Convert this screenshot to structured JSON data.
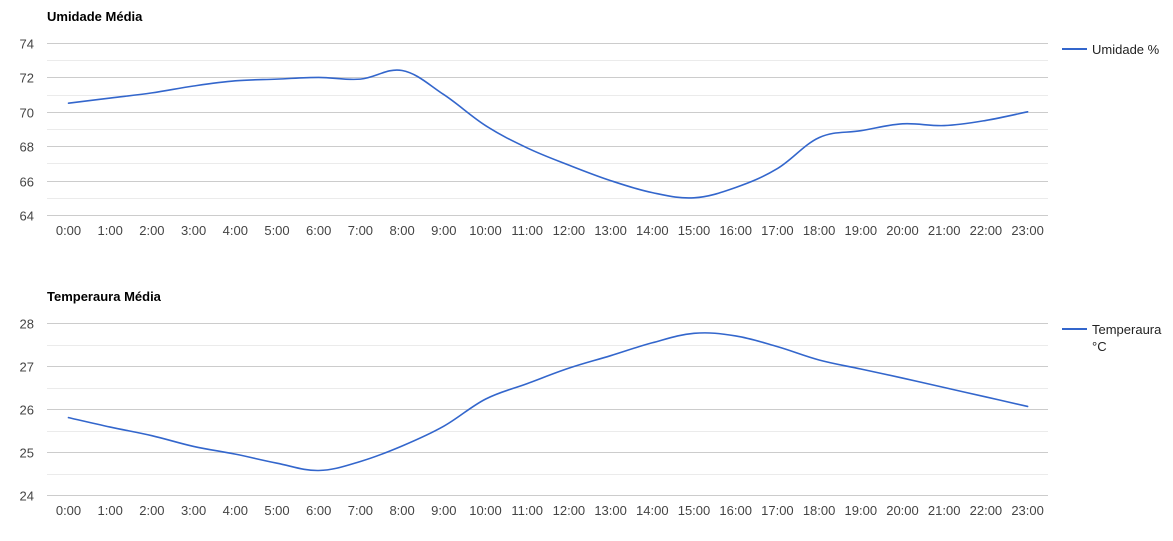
{
  "chart_data": [
    {
      "type": "line",
      "title": "Umidade Média",
      "xlabel": "",
      "ylabel": "",
      "categories": [
        "0:00",
        "1:00",
        "2:00",
        "3:00",
        "4:00",
        "5:00",
        "6:00",
        "7:00",
        "8:00",
        "9:00",
        "10:00",
        "11:00",
        "12:00",
        "13:00",
        "14:00",
        "15:00",
        "16:00",
        "17:00",
        "18:00",
        "19:00",
        "20:00",
        "21:00",
        "22:00",
        "23:00"
      ],
      "series": [
        {
          "name": "Umidade %",
          "color": "#3366cc",
          "values": [
            70.5,
            70.8,
            71.1,
            71.5,
            71.8,
            71.9,
            72.0,
            71.9,
            72.4,
            71.0,
            69.2,
            67.9,
            66.9,
            66.0,
            65.3,
            65.0,
            65.6,
            66.7,
            68.5,
            68.9,
            69.3,
            69.2,
            69.5,
            70.0
          ]
        }
      ],
      "ylim": [
        64,
        74
      ],
      "yticks": [
        64,
        66,
        68,
        70,
        72,
        74
      ],
      "grid": true,
      "legend": "right"
    },
    {
      "type": "line",
      "title": "Temperaura Média",
      "xlabel": "",
      "ylabel": "",
      "categories": [
        "0:00",
        "1:00",
        "2:00",
        "3:00",
        "4:00",
        "5:00",
        "6:00",
        "7:00",
        "8:00",
        "9:00",
        "10:00",
        "11:00",
        "12:00",
        "13:00",
        "14:00",
        "15:00",
        "16:00",
        "17:00",
        "18:00",
        "19:00",
        "20:00",
        "21:00",
        "22:00",
        "23:00"
      ],
      "series": [
        {
          "name": "Temperaura °C",
          "legend_lines": [
            "Temperaura",
            "°C"
          ],
          "color": "#3366cc",
          "values": [
            25.8,
            25.58,
            25.38,
            25.13,
            24.95,
            24.74,
            24.57,
            24.78,
            25.14,
            25.6,
            26.23,
            26.59,
            26.95,
            27.24,
            27.54,
            27.76,
            27.7,
            27.45,
            27.14,
            26.93,
            26.72,
            26.5,
            26.28,
            26.06
          ]
        }
      ],
      "ylim": [
        24,
        28
      ],
      "yticks": [
        24,
        25,
        26,
        27,
        28
      ],
      "grid": true,
      "legend": "right"
    }
  ]
}
